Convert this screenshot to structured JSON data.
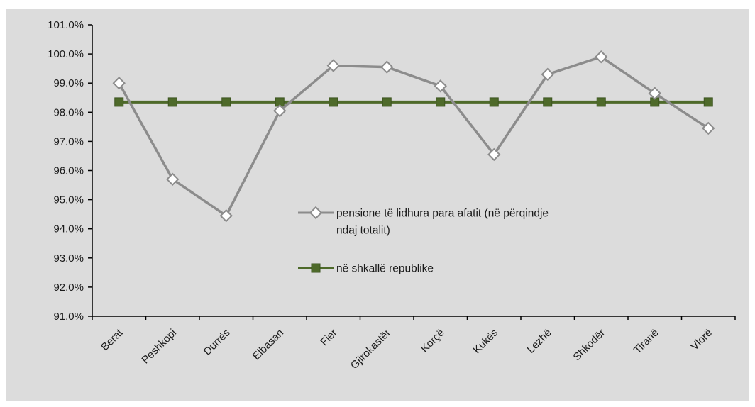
{
  "chart_data": {
    "type": "line",
    "categories": [
      "Berat",
      "Peshkopi",
      "Durrës",
      "Elbasan",
      "Fier",
      "Gjirokastër",
      "Korçë",
      "Kukës",
      "Lezhë",
      "Shkodër",
      "Tiranë",
      "Vlorë"
    ],
    "series": [
      {
        "name": "pensione të lidhura para afatit (në përqindje ndaj totalit)",
        "name_lines": [
          "pensione të lidhura para afatit (në përqindje",
          "ndaj totalit)"
        ],
        "values": [
          99.0,
          95.7,
          94.45,
          98.05,
          99.6,
          99.55,
          98.9,
          96.55,
          99.3,
          99.9,
          98.65,
          97.45
        ],
        "color": "#8c8c8c",
        "marker": "diamond-open"
      },
      {
        "name": "në shkallë republike",
        "name_lines": [
          "në shkallë republike"
        ],
        "values": [
          98.35,
          98.35,
          98.35,
          98.35,
          98.35,
          98.35,
          98.35,
          98.35,
          98.35,
          98.35,
          98.35,
          98.35
        ],
        "color": "#4e6a2a",
        "marker": "square-filled"
      }
    ],
    "y_ticks": [
      "101.0%",
      "100.0%",
      "99.0%",
      "98.0%",
      "97.0%",
      "96.0%",
      "95.0%",
      "94.0%",
      "93.0%",
      "92.0%",
      "91.0%"
    ],
    "ylim": [
      91,
      101
    ],
    "y_format": "percent-1dp",
    "grid": false,
    "legend_position": "inside-center",
    "background_color": "#dcdcdc"
  }
}
